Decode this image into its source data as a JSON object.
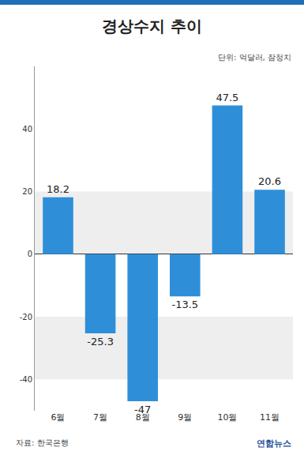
{
  "chart_data": {
    "type": "bar",
    "title": "경상수지 추이",
    "subtitle": "단위: 억달러, 잠정치",
    "annotations": [
      "자료: 한국은행",
      "연합뉴스"
    ],
    "categories": [
      "6월",
      "7월",
      "8월",
      "9월",
      "10월",
      "11월"
    ],
    "values": [
      18.2,
      -25.3,
      -47,
      -13.5,
      47.5,
      20.6
    ],
    "color": "#2e8fd8",
    "ylim": [
      -50,
      60
    ],
    "yticks": [
      -40,
      -20,
      0,
      20,
      40
    ],
    "grid": false,
    "data_labels": true
  }
}
